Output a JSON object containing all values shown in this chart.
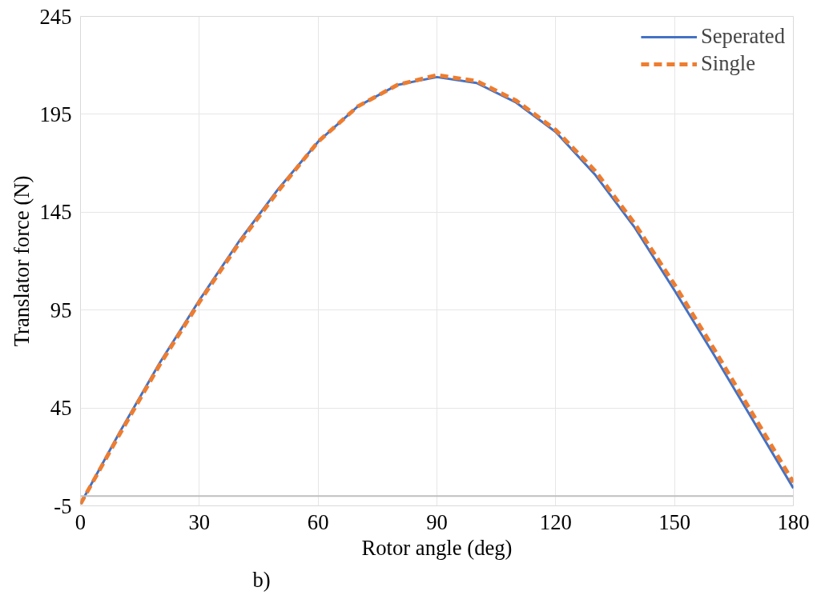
{
  "chart_data": {
    "type": "line",
    "xlabel": "Rotor angle (deg)",
    "ylabel": "Translator force (N)",
    "x": [
      0,
      10,
      20,
      30,
      40,
      50,
      60,
      70,
      80,
      90,
      100,
      110,
      120,
      130,
      140,
      150,
      160,
      170,
      180
    ],
    "series": [
      {
        "name": "Seperated",
        "color": "#4472c4",
        "line_style": "solid",
        "values": [
          -4,
          33,
          68,
          100,
          130,
          157,
          181,
          199,
          210,
          214,
          211,
          201,
          186,
          164,
          137,
          105,
          72,
          38,
          4
        ]
      },
      {
        "name": "Single",
        "color": "#ed7d31",
        "line_style": "dashed",
        "values": [
          -4,
          32,
          67,
          99,
          129,
          156,
          181,
          199,
          210,
          215,
          212,
          202,
          187,
          166,
          139,
          108,
          75,
          41,
          7
        ]
      }
    ],
    "xlim": [
      0,
      180
    ],
    "xticks": [
      0,
      30,
      60,
      90,
      120,
      150,
      180
    ],
    "ylim": [
      -5,
      245
    ],
    "yticks": [
      -5,
      45,
      95,
      145,
      195,
      245
    ],
    "ref_lines": [
      {
        "axis": "y",
        "value": 0,
        "color": "#bfbfbf"
      }
    ],
    "annotations": [
      "b)"
    ],
    "grid": true,
    "legend": "top right",
    "marker": "none"
  }
}
